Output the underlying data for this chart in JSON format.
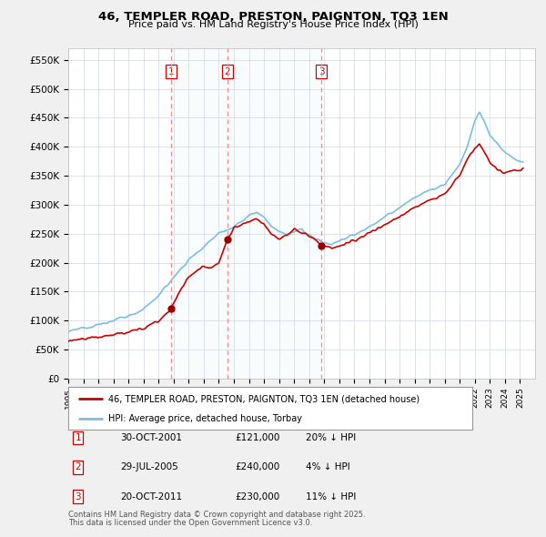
{
  "title": "46, TEMPLER ROAD, PRESTON, PAIGNTON, TQ3 1EN",
  "subtitle": "Price paid vs. HM Land Registry's House Price Index (HPI)",
  "yticks": [
    0,
    50000,
    100000,
    150000,
    200000,
    250000,
    300000,
    350000,
    400000,
    450000,
    500000,
    550000
  ],
  "ytick_labels": [
    "£0",
    "£50K",
    "£100K",
    "£150K",
    "£200K",
    "£250K",
    "£300K",
    "£350K",
    "£400K",
    "£450K",
    "£500K",
    "£550K"
  ],
  "transactions": [
    {
      "num": 1,
      "date": "30-OCT-2001",
      "price": 121000,
      "hpi_rel": "20% ↓ HPI",
      "x_year": 2001.83
    },
    {
      "num": 2,
      "date": "29-JUL-2005",
      "price": 240000,
      "hpi_rel": "4% ↓ HPI",
      "x_year": 2005.57
    },
    {
      "num": 3,
      "date": "20-OCT-2011",
      "price": 230000,
      "hpi_rel": "11% ↓ HPI",
      "x_year": 2011.8
    }
  ],
  "legend_line1": "46, TEMPLER ROAD, PRESTON, PAIGNTON, TQ3 1EN (detached house)",
  "legend_line2": "HPI: Average price, detached house, Torbay",
  "footer1": "Contains HM Land Registry data © Crown copyright and database right 2025.",
  "footer2": "This data is licensed under the Open Government Licence v3.0.",
  "line_color_red": "#cc0000",
  "line_color_blue": "#7bbfde",
  "shade_color": "#ddeef8",
  "vline_color": "#ff8888",
  "bg_color": "#f0f0f0",
  "plot_bg": "#ffffff",
  "xmin": 1995,
  "xmax": 2026,
  "ylim": [
    0,
    570000
  ]
}
